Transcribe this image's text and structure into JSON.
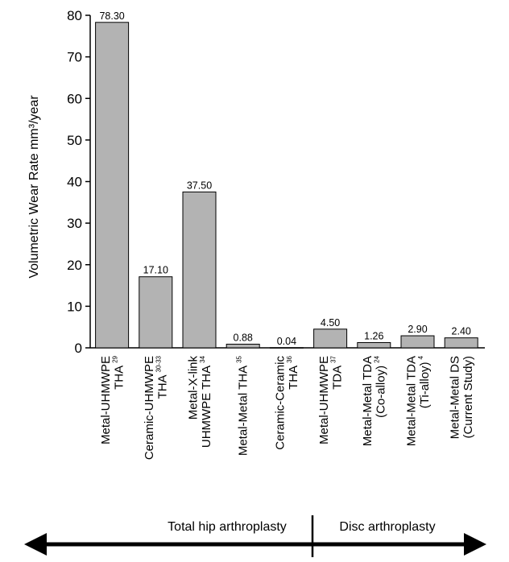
{
  "chart_data": {
    "type": "bar",
    "ylabel": "Volumetric Wear Rate mm³/year",
    "ylim": [
      0,
      80
    ],
    "yticks": [
      0,
      10,
      20,
      30,
      40,
      50,
      60,
      70,
      80
    ],
    "categories": [
      {
        "lines": [
          "Metal-UHMWPE",
          "THA"
        ],
        "refs": [
          "29"
        ]
      },
      {
        "lines": [
          "Ceramic-UHMWPE",
          "THA"
        ],
        "refs": [
          "30-33"
        ]
      },
      {
        "lines": [
          "Metal-X-link",
          "UHMWPE THA"
        ],
        "refs": [
          "34"
        ]
      },
      {
        "lines": [
          "Metal-Metal THA"
        ],
        "refs": [
          "35"
        ]
      },
      {
        "lines": [
          "Ceramic-Ceramic",
          "THA"
        ],
        "refs": [
          "36"
        ]
      },
      {
        "lines": [
          "Metal-UHMWPE",
          "TDA"
        ],
        "refs": [
          "37"
        ]
      },
      {
        "lines": [
          "Metal-Metal TDA",
          "(Co-alloy)"
        ],
        "refs": [
          "24"
        ]
      },
      {
        "lines": [
          "Metal-Metal TDA",
          "(Ti-alloy)"
        ],
        "refs": [
          "4"
        ]
      },
      {
        "lines": [
          "Metal-Metal DS",
          "(Current Study)"
        ],
        "refs": []
      }
    ],
    "values": [
      78.3,
      17.1,
      37.5,
      0.88,
      0.04,
      4.5,
      1.26,
      2.9,
      2.4
    ],
    "value_labels": [
      "78.30",
      "17.10",
      "37.50",
      "0.88",
      "0.04",
      "4.50",
      "1.26",
      "2.90",
      "2.40"
    ],
    "bar_color": "#b3b3b3",
    "grid": false
  },
  "regions": {
    "left": "Total hip arthroplasty",
    "right": "Disc arthroplasty"
  }
}
